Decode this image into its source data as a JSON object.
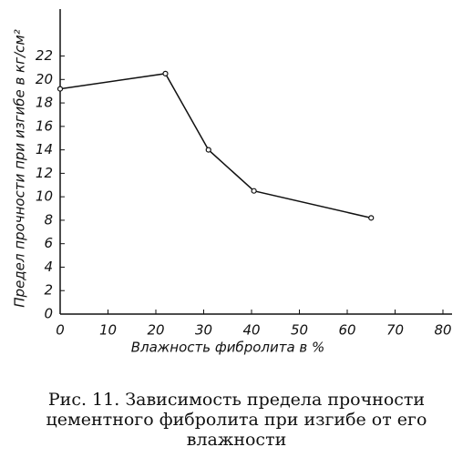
{
  "chart_data": {
    "type": "line",
    "y_label": "Предел прочности при изгибе в кг/см²",
    "x_label": "Влажность фибролита в %",
    "caption_lines": [
      "Рис. 11. Зависимость предела прочности",
      "цементного фибролита при изгибе от его",
      "влажности"
    ],
    "x": [
      0,
      22,
      31,
      40.5,
      65
    ],
    "series": [
      {
        "color": "#111111",
        "values": [
          19.2,
          20.5,
          14,
          10.5,
          8.2
        ]
      }
    ],
    "xlim": [
      0,
      80
    ],
    "xticks": [
      0,
      10,
      20,
      30,
      40,
      50,
      60,
      70,
      80
    ],
    "ylim": [
      0,
      26
    ],
    "yticks": [
      0,
      2,
      4,
      6,
      8,
      10,
      12,
      14,
      16,
      18,
      20,
      22
    ],
    "grid": false
  }
}
